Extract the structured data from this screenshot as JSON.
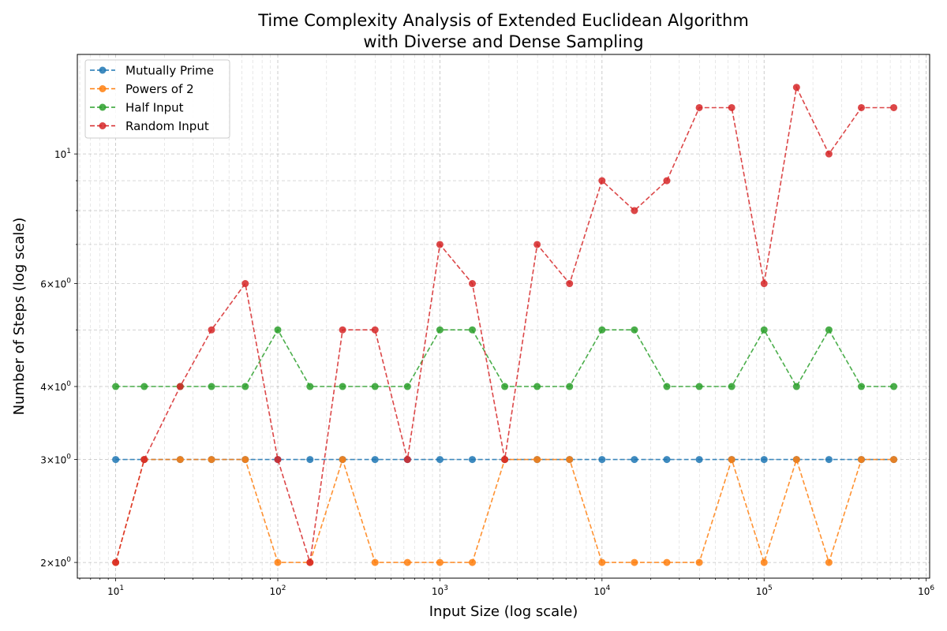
{
  "chart_data": {
    "type": "line",
    "title_lines": [
      "Time Complexity Analysis of Extended Euclidean Algorithm",
      "with Diverse and Dense Sampling"
    ],
    "xlabel": "Input Size (log scale)",
    "ylabel": "Number of Steps (log scale)",
    "x_scale": "log",
    "y_scale": "log",
    "xlim": [
      5.8,
      1050000
    ],
    "ylim": [
      1.88,
      14.8
    ],
    "grid": true,
    "legend_position": "top-left",
    "x_tick_labels": [
      {
        "value": 10,
        "base": "10",
        "exp": "1"
      },
      {
        "value": 100,
        "base": "10",
        "exp": "2"
      },
      {
        "value": 1000,
        "base": "10",
        "exp": "3"
      },
      {
        "value": 10000,
        "base": "10",
        "exp": "4"
      },
      {
        "value": 100000,
        "base": "10",
        "exp": "5"
      },
      {
        "value": 1000000,
        "base": "10",
        "exp": "6"
      }
    ],
    "y_tick_labels": [
      {
        "value": 2,
        "mant": "2",
        "base": "10",
        "exp": "0"
      },
      {
        "value": 3,
        "mant": "3",
        "base": "10",
        "exp": "0"
      },
      {
        "value": 4,
        "mant": "4",
        "base": "10",
        "exp": "0"
      },
      {
        "value": 6,
        "mant": "6",
        "base": "10",
        "exp": "0"
      },
      {
        "value": 10,
        "mant": "",
        "base": "10",
        "exp": "1"
      }
    ],
    "x": [
      10,
      15,
      25,
      39,
      63,
      100,
      158,
      251,
      398,
      631,
      1000,
      1585,
      2512,
      3981,
      6310,
      10000,
      15849,
      25119,
      39811,
      63096,
      100000,
      158489,
      251189,
      398107,
      630957
    ],
    "series": [
      {
        "name": "Mutually Prime",
        "color": "#1f77b4",
        "values": [
          3,
          3,
          3,
          3,
          3,
          3,
          3,
          3,
          3,
          3,
          3,
          3,
          3,
          3,
          3,
          3,
          3,
          3,
          3,
          3,
          3,
          3,
          3,
          3,
          3
        ]
      },
      {
        "name": "Powers of 2",
        "color": "#ff7f0e",
        "values": [
          2,
          3,
          3,
          3,
          3,
          2,
          2,
          3,
          2,
          2,
          2,
          2,
          3,
          3,
          3,
          2,
          2,
          2,
          2,
          3,
          2,
          3,
          2,
          3,
          3
        ]
      },
      {
        "name": "Half Input",
        "color": "#2ca02c",
        "values": [
          4,
          4,
          4,
          4,
          4,
          5,
          4,
          4,
          4,
          4,
          5,
          5,
          4,
          4,
          4,
          5,
          5,
          4,
          4,
          4,
          5,
          4,
          5,
          4,
          4
        ]
      },
      {
        "name": "Random Input",
        "color": "#d62728",
        "values": [
          2,
          3,
          4,
          5,
          6,
          3,
          2,
          5,
          5,
          3,
          7,
          6,
          3,
          7,
          6,
          9,
          8,
          9,
          12,
          12,
          6,
          13,
          10,
          12,
          12
        ]
      }
    ]
  }
}
